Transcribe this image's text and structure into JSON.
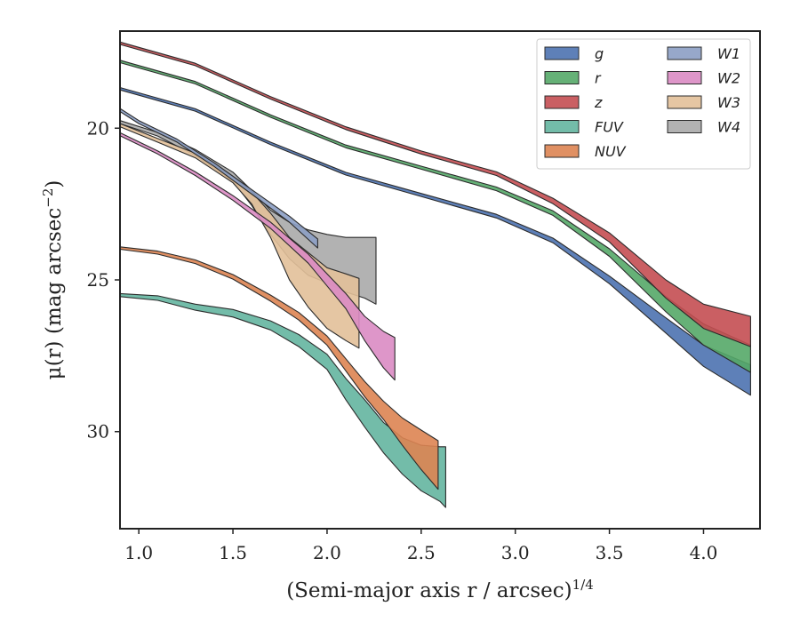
{
  "chart_data": {
    "type": "area",
    "x_ticks": [
      1.0,
      1.5,
      2.0,
      2.5,
      3.0,
      3.5,
      4.0
    ],
    "x_tick_labels": [
      "1.0",
      "1.5",
      "2.0",
      "2.5",
      "3.0",
      "3.5",
      "4.0"
    ],
    "y_ticks": [
      20,
      25,
      30
    ],
    "y_tick_labels": [
      "20",
      "25",
      "30"
    ],
    "xlim": [
      0.9,
      4.3
    ],
    "ylim": [
      33.2,
      16.8
    ],
    "y_inverted": true,
    "xlabel": {
      "main": "(Semi-major axis r / arcsec)",
      "superscript": "1/4"
    },
    "ylabel": {
      "main": "μ(r) (mag arcsec",
      "superscript": "−2",
      "close": ")"
    },
    "legend_position": "top-right",
    "legend_columns": 2,
    "series": [
      {
        "name": "g",
        "color": "#4c72b0",
        "x": [
          0.9,
          1.3,
          1.7,
          2.1,
          2.5,
          2.9,
          3.2,
          3.5,
          3.8,
          4.0,
          4.25
        ],
        "y": [
          18.7,
          19.4,
          20.5,
          21.5,
          22.2,
          22.9,
          23.7,
          25.0,
          26.5,
          27.5,
          28.3
        ],
        "width": [
          0.08,
          0.08,
          0.08,
          0.09,
          0.1,
          0.12,
          0.15,
          0.25,
          0.5,
          0.7,
          1.0
        ]
      },
      {
        "name": "r",
        "color": "#55a868",
        "x": [
          0.9,
          1.3,
          1.7,
          2.1,
          2.5,
          2.9,
          3.2,
          3.5,
          3.8,
          4.0,
          4.25
        ],
        "y": [
          17.8,
          18.5,
          19.6,
          20.6,
          21.3,
          22.0,
          22.8,
          24.1,
          25.8,
          26.8,
          27.6
        ],
        "width": [
          0.08,
          0.08,
          0.08,
          0.09,
          0.1,
          0.12,
          0.15,
          0.25,
          0.5,
          0.7,
          0.9
        ]
      },
      {
        "name": "z",
        "color": "#c44e52",
        "x": [
          0.9,
          1.3,
          1.7,
          2.1,
          2.5,
          2.9,
          3.2,
          3.5,
          3.8,
          4.0,
          4.25
        ],
        "y": [
          17.2,
          17.9,
          19.0,
          20.0,
          20.8,
          21.5,
          22.4,
          23.6,
          25.3,
          26.2,
          26.7
        ],
        "width": [
          0.08,
          0.08,
          0.08,
          0.09,
          0.1,
          0.12,
          0.18,
          0.3,
          0.6,
          0.8,
          1.0
        ]
      },
      {
        "name": "FUV",
        "color": "#64b5a0",
        "x": [
          0.9,
          1.1,
          1.3,
          1.5,
          1.7,
          1.85,
          2.0,
          2.1,
          2.2,
          2.3,
          2.4,
          2.5,
          2.6,
          2.63
        ],
        "y": [
          25.5,
          25.6,
          25.9,
          26.1,
          26.5,
          27.0,
          27.7,
          28.6,
          29.4,
          30.2,
          30.8,
          31.2,
          31.4,
          31.5
        ],
        "width": [
          0.1,
          0.15,
          0.2,
          0.25,
          0.3,
          0.4,
          0.5,
          0.7,
          0.9,
          1.0,
          1.2,
          1.5,
          1.8,
          2.0
        ]
      },
      {
        "name": "NUV",
        "color": "#dd8452",
        "x": [
          0.9,
          1.1,
          1.3,
          1.5,
          1.7,
          1.85,
          2.0,
          2.1,
          2.2,
          2.3,
          2.4,
          2.5,
          2.59
        ],
        "y": [
          23.95,
          24.1,
          24.4,
          24.9,
          25.6,
          26.2,
          27.0,
          27.8,
          28.6,
          29.3,
          30.0,
          30.6,
          31.1
        ],
        "width": [
          0.08,
          0.1,
          0.12,
          0.15,
          0.2,
          0.25,
          0.3,
          0.4,
          0.5,
          0.6,
          0.9,
          1.3,
          1.6
        ]
      },
      {
        "name": "W1",
        "color": "#8c9ec4",
        "x": [
          0.9,
          1.0,
          1.2,
          1.4,
          1.6,
          1.8,
          1.95
        ],
        "y": [
          19.4,
          19.8,
          20.4,
          21.2,
          22.1,
          23.0,
          23.8
        ],
        "width": [
          0.1,
          0.1,
          0.1,
          0.12,
          0.15,
          0.2,
          0.3
        ]
      },
      {
        "name": "W2",
        "color": "#da8bc3",
        "x": [
          0.9,
          1.1,
          1.3,
          1.5,
          1.7,
          1.9,
          2.1,
          2.2,
          2.3,
          2.36
        ],
        "y": [
          20.2,
          20.8,
          21.5,
          22.3,
          23.2,
          24.3,
          25.7,
          26.6,
          27.3,
          27.6
        ],
        "width": [
          0.1,
          0.1,
          0.12,
          0.15,
          0.2,
          0.3,
          0.5,
          0.8,
          1.2,
          1.4
        ]
      },
      {
        "name": "W3",
        "color": "#e2c099",
        "x": [
          0.9,
          1.1,
          1.3,
          1.5,
          1.6,
          1.7,
          1.8,
          1.9,
          2.0,
          2.1,
          2.17
        ],
        "y": [
          19.9,
          20.4,
          20.9,
          21.7,
          22.3,
          23.2,
          24.3,
          25.0,
          25.6,
          25.9,
          26.1
        ],
        "width": [
          0.1,
          0.12,
          0.15,
          0.2,
          0.4,
          0.8,
          1.4,
          1.8,
          2.0,
          2.2,
          2.3
        ]
      },
      {
        "name": "W4",
        "color": "#aaaaaa",
        "x": [
          0.9,
          1.1,
          1.3,
          1.5,
          1.6,
          1.7,
          1.8,
          1.9,
          2.0,
          2.1,
          2.2,
          2.26
        ],
        "y": [
          19.8,
          20.2,
          20.8,
          21.6,
          22.3,
          23.1,
          23.7,
          24.1,
          24.3,
          24.5,
          24.6,
          24.7
        ],
        "width": [
          0.1,
          0.12,
          0.2,
          0.3,
          0.5,
          0.8,
          1.2,
          1.5,
          1.6,
          1.8,
          2.0,
          2.2
        ]
      }
    ]
  }
}
